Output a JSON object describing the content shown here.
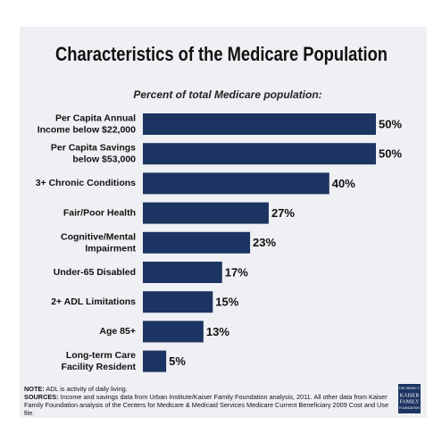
{
  "chart_data": {
    "type": "bar",
    "orientation": "horizontal",
    "title": "Characteristics of the Medicare Population",
    "subtitle": "Percent of total Medicare population:",
    "categories": [
      "Per Capita Annual\nIncome below $22,000",
      "Per Capita Savings\nbelow $53,000",
      "3+ Chronic Conditions",
      "Fair/Poor Health",
      "Cognitive/Mental\nImpairment",
      "Under-65 Disabled",
      "2+ ADL Limitations",
      "Age 85+",
      "Long-term Care\nFacility Resident"
    ],
    "values": [
      50,
      50,
      40,
      27,
      23,
      17,
      15,
      13,
      5
    ],
    "value_labels": [
      "50%",
      "50%",
      "40%",
      "27%",
      "23%",
      "17%",
      "15%",
      "13%",
      "5%"
    ],
    "color": "#1c3461"
  },
  "footer": {
    "note": {
      "label": "NOTE:",
      "text": "ADL is activity of daily living."
    },
    "sources": {
      "label": "SOURCES:",
      "text": "Income and savings data from Urban Institute/Kaiser Family Foundation analysis, 2011.  All other data from Kaiser Family Foundation analysis of the Centers for Medicare & Medicaid Services Medicare Current Beneficiary 2009 Cost and Use file."
    },
    "logo": [
      "THE HENRY J.",
      "KAISER",
      "FAMILY",
      "FOUNDATION"
    ]
  }
}
